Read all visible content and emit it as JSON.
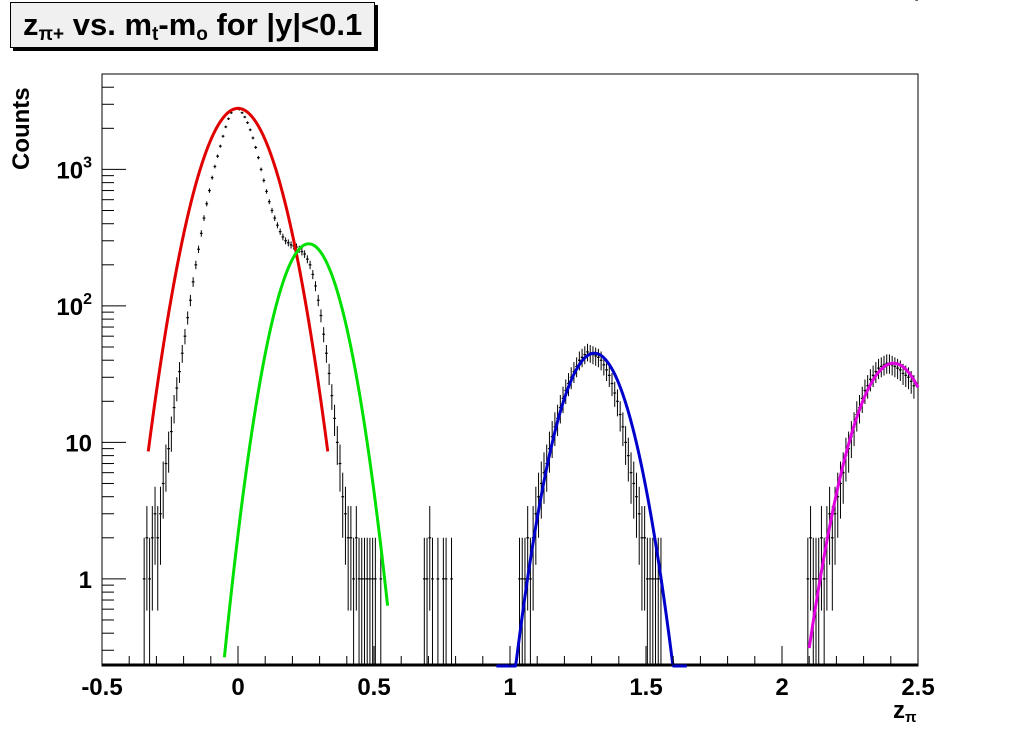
{
  "title": {
    "main": "z",
    "sub1": "π+",
    "mid1": " vs. m",
    "sub2": "t",
    "mid2": "-m",
    "sub3": "o",
    "tail": " for |y|<0.1"
  },
  "chart_data": {
    "type": "line",
    "title": "zπ+ vs. mt-mo for |y|<0.1",
    "xlabel_main": "z",
    "xlabel_sub": "π",
    "ylabel": "Counts",
    "xlim": [
      -0.5,
      2.5
    ],
    "ylim": [
      0.23,
      5000
    ],
    "y_scale": "log",
    "grid": false,
    "x_ticks": [
      {
        "value": -0.5,
        "label": "-0.5"
      },
      {
        "value": 0,
        "label": "0"
      },
      {
        "value": 0.5,
        "label": "0.5"
      },
      {
        "value": 1,
        "label": "1"
      },
      {
        "value": 1.5,
        "label": "1.5"
      },
      {
        "value": 2,
        "label": "2"
      },
      {
        "value": 2.5,
        "label": "2.5"
      }
    ],
    "y_ticks": [
      {
        "value": 1,
        "label": "1",
        "sup": ""
      },
      {
        "value": 10,
        "label": "10",
        "sup": ""
      },
      {
        "value": 100,
        "label": "10",
        "sup": "2"
      },
      {
        "value": 1000,
        "label": "10",
        "sup": "3"
      }
    ],
    "series": [
      {
        "kind": "histogram",
        "color": "#000000",
        "bin_width": 0.01,
        "x": [
          -0.345,
          -0.335,
          -0.325,
          -0.315,
          -0.305,
          -0.295,
          -0.285,
          -0.275,
          -0.265,
          -0.255,
          -0.245,
          -0.235,
          -0.225,
          -0.215,
          -0.205,
          -0.195,
          -0.185,
          -0.175,
          -0.165,
          -0.155,
          -0.145,
          -0.135,
          -0.125,
          -0.115,
          -0.105,
          -0.095,
          -0.085,
          -0.075,
          -0.065,
          -0.055,
          -0.045,
          -0.035,
          -0.025,
          -0.015,
          -0.005,
          0.005,
          0.015,
          0.025,
          0.035,
          0.045,
          0.055,
          0.065,
          0.075,
          0.085,
          0.095,
          0.105,
          0.115,
          0.125,
          0.135,
          0.145,
          0.155,
          0.165,
          0.175,
          0.185,
          0.195,
          0.205,
          0.215,
          0.225,
          0.235,
          0.245,
          0.255,
          0.265,
          0.275,
          0.285,
          0.295,
          0.305,
          0.315,
          0.325,
          0.335,
          0.345,
          0.355,
          0.365,
          0.375,
          0.385,
          0.395,
          0.405,
          0.415,
          0.425,
          0.435,
          0.445,
          0.455,
          0.465,
          0.475,
          0.485,
          0.495,
          0.505,
          0.525,
          0.685,
          0.695,
          0.705,
          0.715,
          0.735,
          0.755,
          0.765,
          0.785,
          1.035,
          1.045,
          1.055,
          1.065,
          1.075,
          1.085,
          1.095,
          1.105,
          1.115,
          1.125,
          1.135,
          1.145,
          1.155,
          1.165,
          1.175,
          1.185,
          1.195,
          1.205,
          1.215,
          1.225,
          1.235,
          1.245,
          1.255,
          1.265,
          1.275,
          1.285,
          1.295,
          1.305,
          1.315,
          1.325,
          1.335,
          1.345,
          1.355,
          1.365,
          1.375,
          1.385,
          1.395,
          1.405,
          1.415,
          1.425,
          1.435,
          1.445,
          1.455,
          1.465,
          1.475,
          1.485,
          1.495,
          1.505,
          1.515,
          1.525,
          1.535,
          1.545,
          1.555,
          2.095,
          2.105,
          2.115,
          2.125,
          2.135,
          2.145,
          2.155,
          2.165,
          2.175,
          2.185,
          2.195,
          2.205,
          2.215,
          2.225,
          2.235,
          2.245,
          2.255,
          2.265,
          2.275,
          2.285,
          2.295,
          2.305,
          2.315,
          2.325,
          2.335,
          2.345,
          2.355,
          2.365,
          2.375,
          2.385,
          2.395,
          2.405,
          2.415,
          2.425,
          2.435,
          2.445,
          2.455,
          2.465,
          2.475,
          2.485,
          2.495
        ],
        "values": [
          1,
          2,
          1,
          2,
          3,
          2,
          3,
          5,
          7,
          9,
          12,
          18,
          25,
          33,
          45,
          60,
          82,
          110,
          150,
          200,
          260,
          340,
          440,
          560,
          700,
          870,
          1050,
          1250,
          1480,
          1750,
          2050,
          2350,
          2600,
          2750,
          2800,
          2750,
          2600,
          2420,
          2200,
          1950,
          1700,
          1450,
          1220,
          1000,
          830,
          690,
          580,
          500,
          440,
          390,
          350,
          320,
          300,
          290,
          280,
          275,
          270,
          260,
          250,
          240,
          220,
          200,
          170,
          140,
          110,
          85,
          62,
          45,
          32,
          22,
          15,
          10,
          7,
          4,
          3,
          2,
          2,
          1,
          2,
          1,
          1,
          1,
          1,
          1,
          1,
          1,
          1,
          1,
          1,
          2,
          1,
          1,
          1,
          1,
          1,
          1,
          1,
          1,
          2,
          1,
          2,
          3,
          4,
          5,
          6,
          7,
          9,
          11,
          13,
          15,
          18,
          21,
          24,
          27,
          30,
          33,
          36,
          40,
          42,
          44,
          46,
          45,
          44,
          43,
          42,
          40,
          37,
          34,
          31,
          27,
          23,
          20,
          16,
          13,
          10,
          8,
          6,
          5,
          4,
          3,
          2,
          2,
          1,
          1,
          1,
          1,
          1,
          1,
          1,
          2,
          1,
          1,
          1,
          2,
          1,
          2,
          3,
          2,
          3,
          4,
          5,
          6,
          8,
          9,
          11,
          13,
          16,
          18,
          21,
          24,
          26,
          29,
          31,
          33,
          35,
          36,
          37,
          38,
          38,
          37,
          36,
          35,
          34,
          32,
          31,
          30,
          28,
          26
        ]
      },
      {
        "kind": "gaussian_fit",
        "color": "#e00000",
        "amplitude": 2800,
        "mean": 0.0,
        "sigma": 0.097,
        "x_range": [
          -0.33,
          0.33
        ]
      },
      {
        "kind": "gaussian_fit",
        "color": "#00e000",
        "amplitude": 285,
        "mean": 0.26,
        "sigma": 0.083,
        "x_range": [
          -0.05,
          0.55
        ]
      },
      {
        "kind": "gaussian_fit",
        "color": "#0000cc",
        "amplitude": 45,
        "mean": 1.31,
        "sigma": 0.089,
        "x_range": [
          0.95,
          1.65
        ]
      },
      {
        "kind": "gaussian_fit",
        "color": "#e000e0",
        "amplitude": 38,
        "mean": 2.41,
        "sigma": 0.1,
        "x_range": [
          2.1,
          2.5
        ]
      }
    ]
  }
}
